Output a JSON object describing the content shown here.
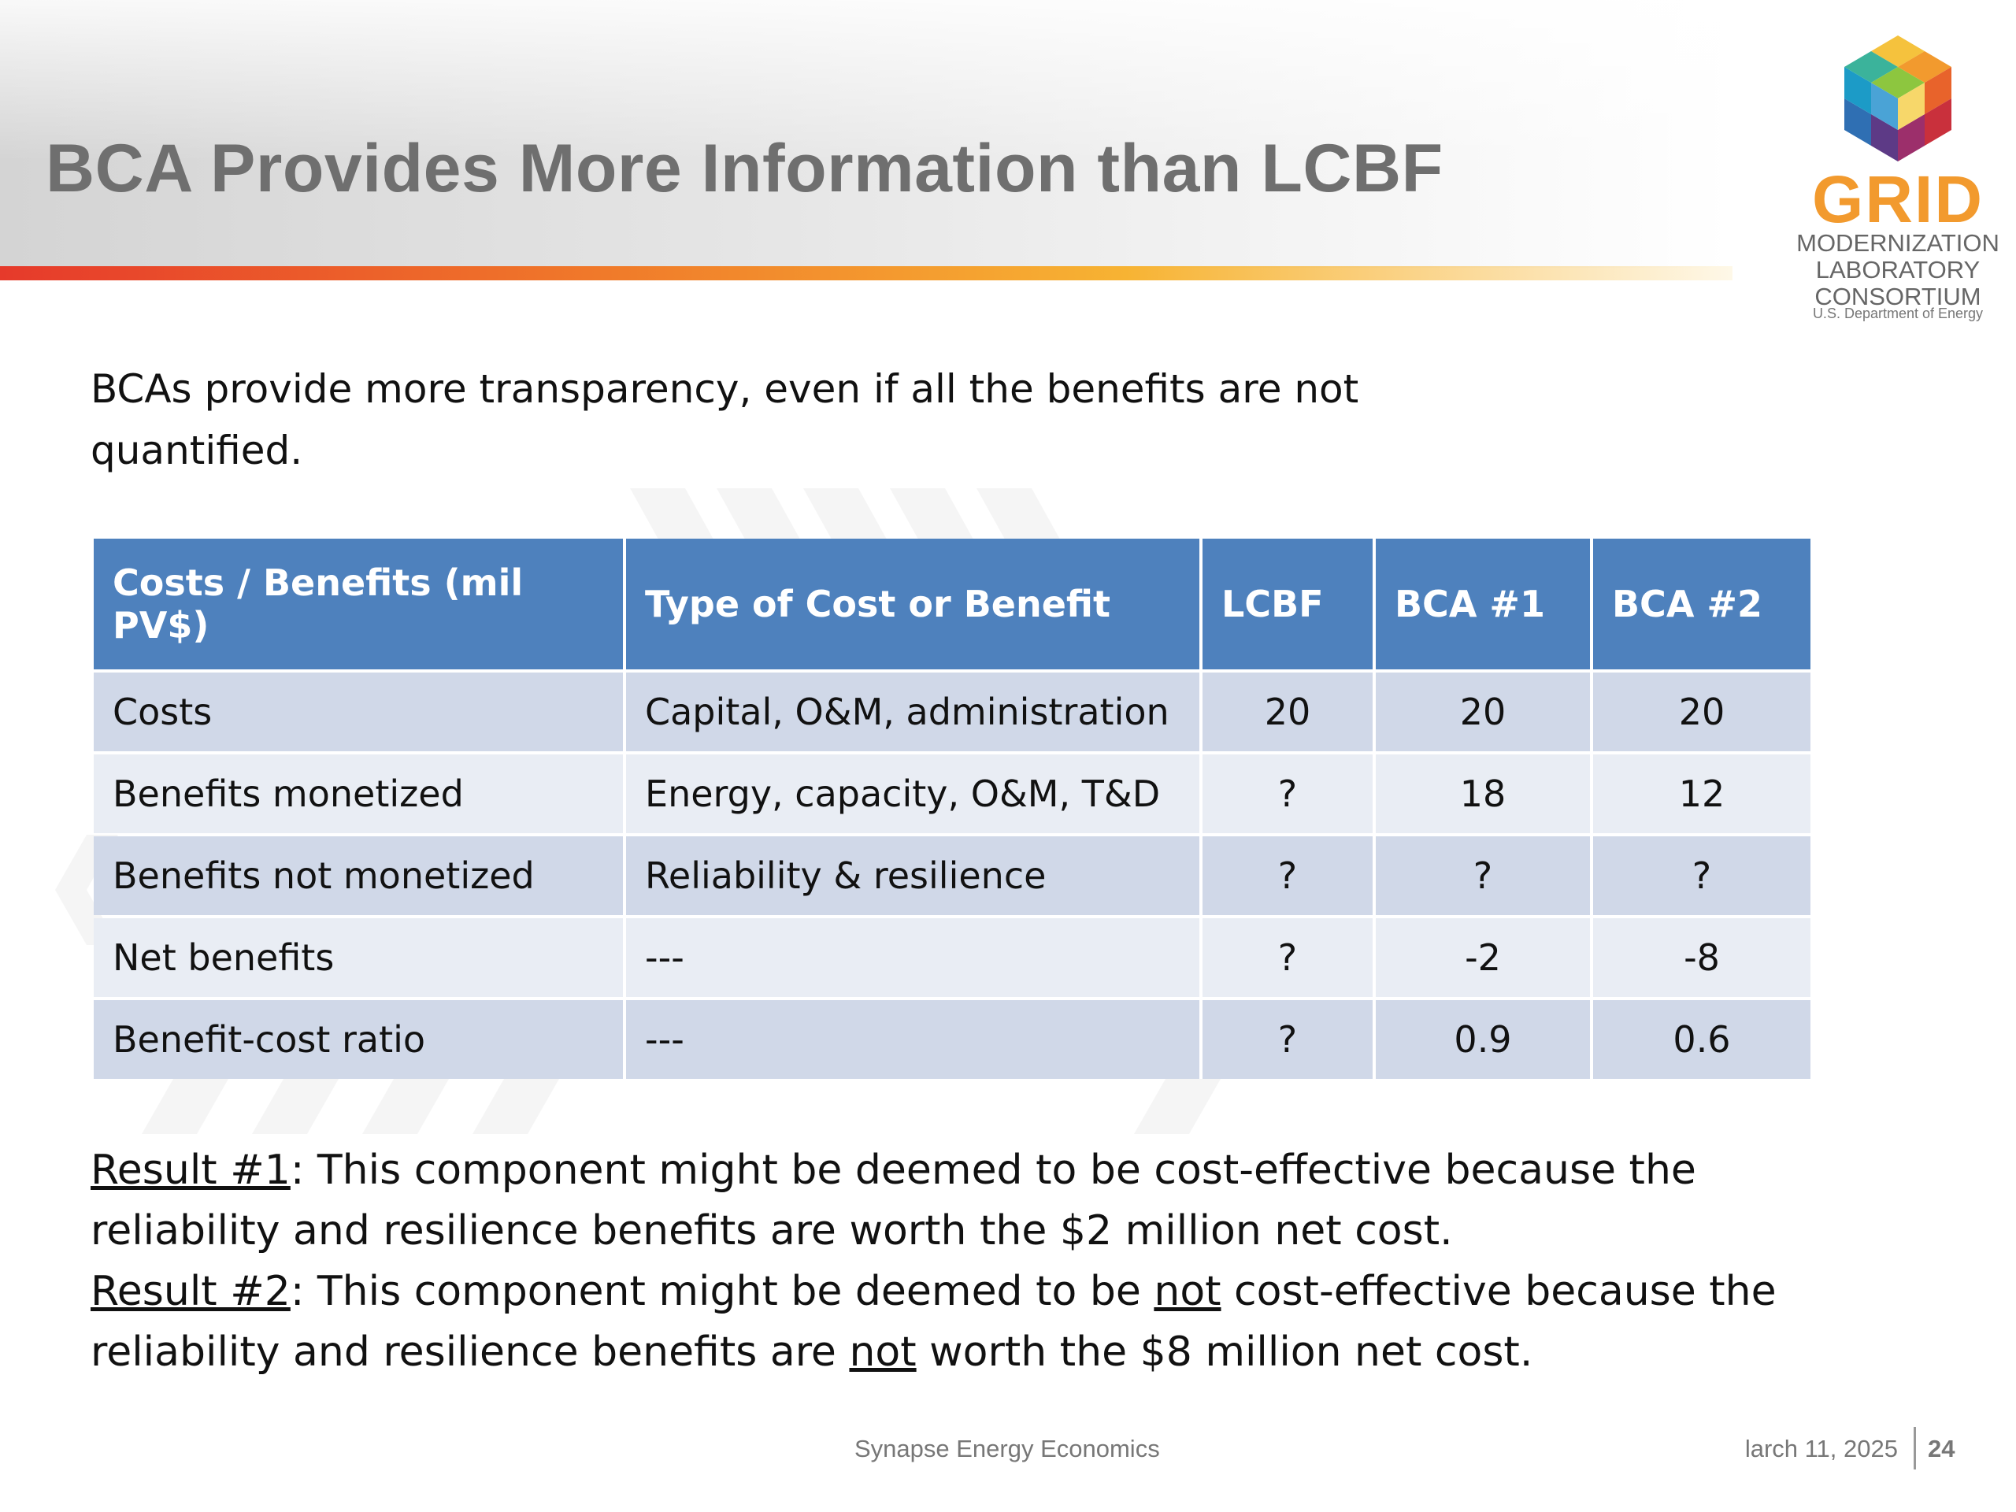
{
  "header": {
    "title": "BCA Provides More Information than LCBF"
  },
  "logo": {
    "word": "GRID",
    "line1": "MODERNIZATION",
    "line2": "LABORATORY",
    "line3": "CONSORTIUM",
    "line4": "U.S. Department of Energy"
  },
  "intro": "BCAs provide more transparency, even if all the benefits are not quantified.",
  "table": {
    "headers": [
      "Costs / Benefits (mil PV$)",
      "Type of Cost or Benefit",
      "LCBF",
      "BCA #1",
      "BCA #2"
    ],
    "rows": [
      [
        "Costs",
        "Capital, O&M, administration",
        "20",
        "20",
        "20"
      ],
      [
        "Benefits monetized",
        "Energy, capacity, O&M, T&D",
        "?",
        "18",
        "12"
      ],
      [
        "Benefits not monetized",
        "Reliability & resilience",
        "?",
        "?",
        "?"
      ],
      [
        "Net benefits",
        "---",
        "?",
        "-2",
        "-8"
      ],
      [
        "Benefit-cost ratio",
        "---",
        "?",
        "0.9",
        "0.6"
      ]
    ]
  },
  "results": {
    "r1_label": "Result #1",
    "r1_text": ": This component might be deemed to be cost-effective because the reliability and resilience benefits are worth the $2 million net cost.",
    "r2_label": "Result #2",
    "r2_text_a": ":  This component might be deemed to be ",
    "r2_not1": "not",
    "r2_text_b": " cost-effective because the reliability and resilience benefits are ",
    "r2_not2": "not",
    "r2_text_c": " worth the $8 million net cost."
  },
  "footer": {
    "center": "Synapse Energy Economics",
    "date": "larch 11, 2025",
    "page": "24"
  },
  "colors": {
    "header_fill": "#4e81bd",
    "row_odd": "#d0d8e8",
    "row_even": "#e9edf4",
    "title_gray": "#6f6f6f",
    "logo_orange": "#f29a2e"
  }
}
